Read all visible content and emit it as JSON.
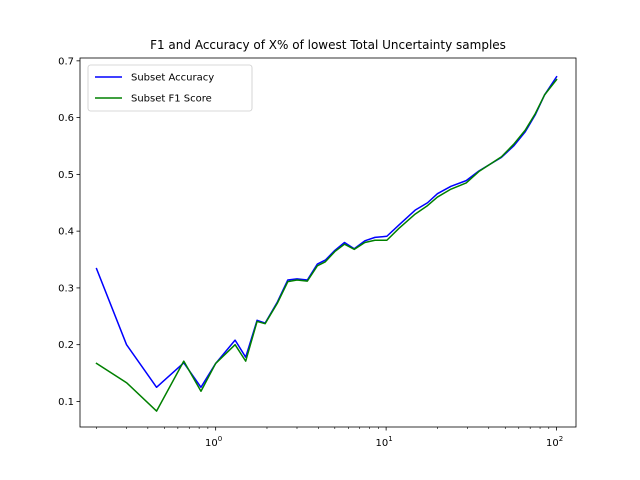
{
  "chart_data": {
    "type": "line",
    "title": "F1 and Accuracy of X% of lowest Total Uncertainty samples",
    "xlabel": "",
    "ylabel": "",
    "x_scale": "log",
    "xlim": [
      0.16,
      130
    ],
    "ylim": [
      0.055,
      0.705
    ],
    "x_ticks": [
      1,
      10,
      100
    ],
    "x_tick_labels": [
      "10",
      "10",
      "10"
    ],
    "x_tick_exponents": [
      "0",
      "1",
      "2"
    ],
    "y_ticks": [
      0.1,
      0.2,
      0.3,
      0.4,
      0.5,
      0.6,
      0.7
    ],
    "y_tick_labels": [
      "0.1",
      "0.2",
      "0.3",
      "0.4",
      "0.5",
      "0.6",
      "0.7"
    ],
    "grid": false,
    "legend_position": "top-left",
    "series": [
      {
        "name": "Subset Accuracy",
        "color": "#0000ff",
        "x": [
          0.2,
          0.3,
          0.45,
          0.65,
          0.82,
          1.0,
          1.3,
          1.5,
          1.75,
          1.95,
          2.3,
          2.65,
          3.0,
          3.45,
          3.95,
          4.4,
          5.0,
          5.7,
          6.5,
          7.5,
          8.6,
          10.1,
          11.9,
          14.8,
          17.5,
          20.0,
          24.0,
          29.5,
          35.0,
          40.8,
          47.5,
          56.0,
          65.5,
          75.0,
          85.0,
          100.0
        ],
        "y": [
          0.334,
          0.2,
          0.125,
          0.168,
          0.125,
          0.167,
          0.208,
          0.178,
          0.243,
          0.238,
          0.275,
          0.314,
          0.316,
          0.314,
          0.342,
          0.349,
          0.366,
          0.38,
          0.369,
          0.383,
          0.389,
          0.391,
          0.411,
          0.437,
          0.45,
          0.466,
          0.479,
          0.489,
          0.506,
          0.518,
          0.53,
          0.55,
          0.575,
          0.605,
          0.64,
          0.672
        ]
      },
      {
        "name": "Subset F1 Score",
        "color": "#008000",
        "x": [
          0.2,
          0.3,
          0.45,
          0.65,
          0.82,
          1.0,
          1.3,
          1.5,
          1.75,
          1.95,
          2.3,
          2.65,
          3.0,
          3.45,
          3.95,
          4.4,
          5.0,
          5.7,
          6.5,
          7.5,
          8.6,
          10.1,
          11.9,
          14.8,
          17.5,
          20.0,
          24.0,
          29.5,
          35.0,
          40.8,
          47.5,
          56.0,
          65.5,
          75.0,
          85.0,
          100.0
        ],
        "y": [
          0.167,
          0.133,
          0.083,
          0.171,
          0.118,
          0.167,
          0.2,
          0.171,
          0.241,
          0.237,
          0.273,
          0.311,
          0.314,
          0.312,
          0.339,
          0.346,
          0.364,
          0.377,
          0.368,
          0.38,
          0.384,
          0.384,
          0.405,
          0.43,
          0.445,
          0.46,
          0.474,
          0.485,
          0.505,
          0.518,
          0.531,
          0.553,
          0.578,
          0.607,
          0.64,
          0.667
        ]
      }
    ]
  }
}
